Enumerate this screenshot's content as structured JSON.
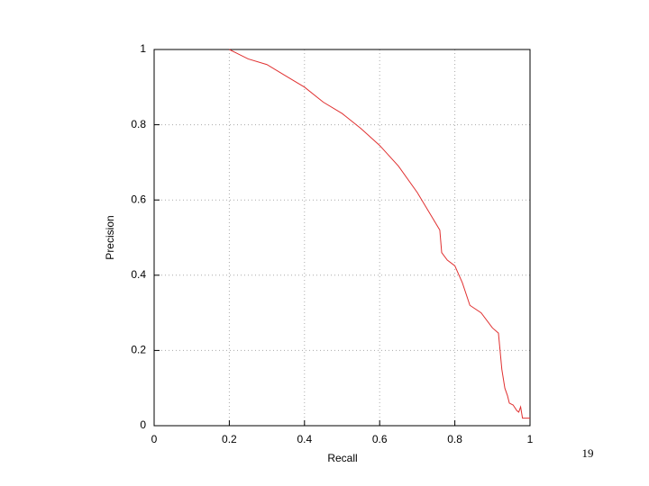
{
  "chart_data": {
    "type": "line",
    "xlabel": "Recall",
    "ylabel": "Precision",
    "x": [
      0.2,
      0.22,
      0.25,
      0.3,
      0.35,
      0.4,
      0.45,
      0.5,
      0.55,
      0.6,
      0.65,
      0.7,
      0.73,
      0.76,
      0.765,
      0.78,
      0.8,
      0.82,
      0.84,
      0.87,
      0.9,
      0.916,
      0.925,
      0.933,
      0.94,
      0.945,
      0.955,
      0.965,
      0.97,
      0.975,
      0.98,
      1
    ],
    "series": [
      {
        "color": "#e03030",
        "values": [
          1,
          0.99,
          0.975,
          0.96,
          0.93,
          0.9,
          0.86,
          0.83,
          0.79,
          0.745,
          0.69,
          0.62,
          0.57,
          0.52,
          0.46,
          0.44,
          0.425,
          0.38,
          0.32,
          0.3,
          0.26,
          0.246,
          0.15,
          0.1,
          0.08,
          0.06,
          0.055,
          0.04,
          0.036,
          0.05,
          0.02,
          0.02
        ]
      }
    ],
    "xlim": [
      0,
      1
    ],
    "ylim": [
      0,
      1
    ],
    "xticks": [
      0,
      0.2,
      0.4,
      0.6,
      0.8,
      1
    ],
    "yticks": [
      0,
      0.2,
      0.4,
      0.6,
      0.8,
      1
    ],
    "grid": true
  },
  "page_number": "19"
}
